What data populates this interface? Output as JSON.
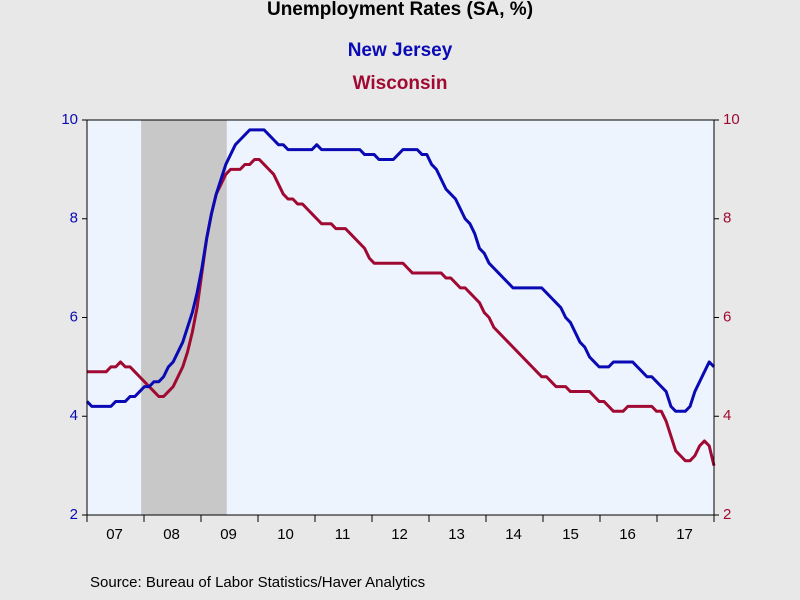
{
  "chart_data": {
    "type": "line",
    "title": "Unemployment Rates (SA, %)",
    "source": "Source:  Bureau of Labor Statistics/Haver Analytics",
    "categories": [
      null,
      null,
      null,
      null,
      null,
      null,
      "07",
      null,
      null,
      null,
      null,
      null,
      null,
      null,
      null,
      null,
      null,
      null,
      "08",
      null,
      null,
      null,
      null,
      null,
      null,
      null,
      null,
      null,
      null,
      null,
      "09",
      null,
      null,
      null,
      null,
      null,
      null,
      null,
      null,
      null,
      null,
      null,
      "10",
      null,
      null,
      null,
      null,
      null,
      null,
      null,
      null,
      null,
      null,
      null,
      "11",
      null,
      null,
      null,
      null,
      null,
      null,
      null,
      null,
      null,
      null,
      null,
      "12",
      null,
      null,
      null,
      null,
      null,
      null,
      null,
      null,
      null,
      null,
      null,
      "13",
      null,
      null,
      null,
      null,
      null,
      null,
      null,
      null,
      null,
      null,
      null,
      "14",
      null,
      null,
      null,
      null,
      null,
      null,
      null,
      null,
      null,
      null,
      null,
      "15",
      null,
      null,
      null,
      null,
      null,
      null,
      null,
      null,
      null,
      null,
      null,
      "16",
      null,
      null,
      null,
      null,
      null,
      null,
      null,
      null,
      null,
      null,
      null,
      "17",
      null,
      null,
      null,
      null,
      null
    ],
    "series": [
      {
        "name": "New Jersey",
        "color": "#0a0ab4",
        "values": [
          4.3,
          4.2,
          4.2,
          4.2,
          4.2,
          4.2,
          4.3,
          4.3,
          4.3,
          4.4,
          4.4,
          4.5,
          4.6,
          4.6,
          4.7,
          4.7,
          4.8,
          5.0,
          5.1,
          5.3,
          5.5,
          5.8,
          6.1,
          6.5,
          7.0,
          7.6,
          8.1,
          8.5,
          8.8,
          9.1,
          9.3,
          9.5,
          9.6,
          9.7,
          9.8,
          9.8,
          9.8,
          9.8,
          9.7,
          9.6,
          9.5,
          9.5,
          9.4,
          9.4,
          9.4,
          9.4,
          9.4,
          9.4,
          9.5,
          9.4,
          9.4,
          9.4,
          9.4,
          9.4,
          9.4,
          9.4,
          9.4,
          9.4,
          9.3,
          9.3,
          9.3,
          9.2,
          9.2,
          9.2,
          9.2,
          9.3,
          9.4,
          9.4,
          9.4,
          9.4,
          9.3,
          9.3,
          9.1,
          9.0,
          8.8,
          8.6,
          8.5,
          8.4,
          8.2,
          8.0,
          7.9,
          7.7,
          7.4,
          7.3,
          7.1,
          7.0,
          6.9,
          6.8,
          6.7,
          6.6,
          6.6,
          6.6,
          6.6,
          6.6,
          6.6,
          6.6,
          6.5,
          6.4,
          6.3,
          6.2,
          6.0,
          5.9,
          5.7,
          5.5,
          5.4,
          5.2,
          5.1,
          5.0,
          5.0,
          5.0,
          5.1,
          5.1,
          5.1,
          5.1,
          5.1,
          5.0,
          4.9,
          4.8,
          4.8,
          4.7,
          4.6,
          4.5,
          4.2,
          4.1,
          4.1,
          4.1,
          4.2,
          4.5,
          4.7,
          4.9,
          5.1,
          5.0
        ]
      },
      {
        "name": "Wisconsin",
        "color": "#a00a32",
        "axis": "y2",
        "values": [
          4.9,
          4.9,
          4.9,
          4.9,
          4.9,
          5.0,
          5.0,
          5.1,
          5.0,
          5.0,
          4.9,
          4.8,
          4.7,
          4.6,
          4.5,
          4.4,
          4.4,
          4.5,
          4.6,
          4.8,
          5.0,
          5.3,
          5.7,
          6.2,
          6.9,
          7.6,
          8.1,
          8.5,
          8.7,
          8.9,
          9.0,
          9.0,
          9.0,
          9.1,
          9.1,
          9.2,
          9.2,
          9.1,
          9.0,
          8.9,
          8.7,
          8.5,
          8.4,
          8.4,
          8.3,
          8.3,
          8.2,
          8.1,
          8.0,
          7.9,
          7.9,
          7.9,
          7.8,
          7.8,
          7.8,
          7.7,
          7.6,
          7.5,
          7.4,
          7.2,
          7.1,
          7.1,
          7.1,
          7.1,
          7.1,
          7.1,
          7.1,
          7.0,
          6.9,
          6.9,
          6.9,
          6.9,
          6.9,
          6.9,
          6.9,
          6.8,
          6.8,
          6.7,
          6.6,
          6.6,
          6.5,
          6.4,
          6.3,
          6.1,
          6.0,
          5.8,
          5.7,
          5.6,
          5.5,
          5.4,
          5.3,
          5.2,
          5.1,
          5.0,
          4.9,
          4.8,
          4.8,
          4.7,
          4.6,
          4.6,
          4.6,
          4.5,
          4.5,
          4.5,
          4.5,
          4.5,
          4.4,
          4.3,
          4.3,
          4.2,
          4.1,
          4.1,
          4.1,
          4.2,
          4.2,
          4.2,
          4.2,
          4.2,
          4.2,
          4.1,
          4.1,
          3.9,
          3.6,
          3.3,
          3.2,
          3.1,
          3.1,
          3.2,
          3.4,
          3.5,
          3.4,
          3.0
        ]
      }
    ],
    "ylim": [
      2,
      10
    ],
    "yticks": [
      2,
      4,
      6,
      8,
      10
    ],
    "y2lim": [
      2,
      10
    ],
    "y2ticks": [
      2,
      4,
      6,
      8,
      10
    ]
  }
}
